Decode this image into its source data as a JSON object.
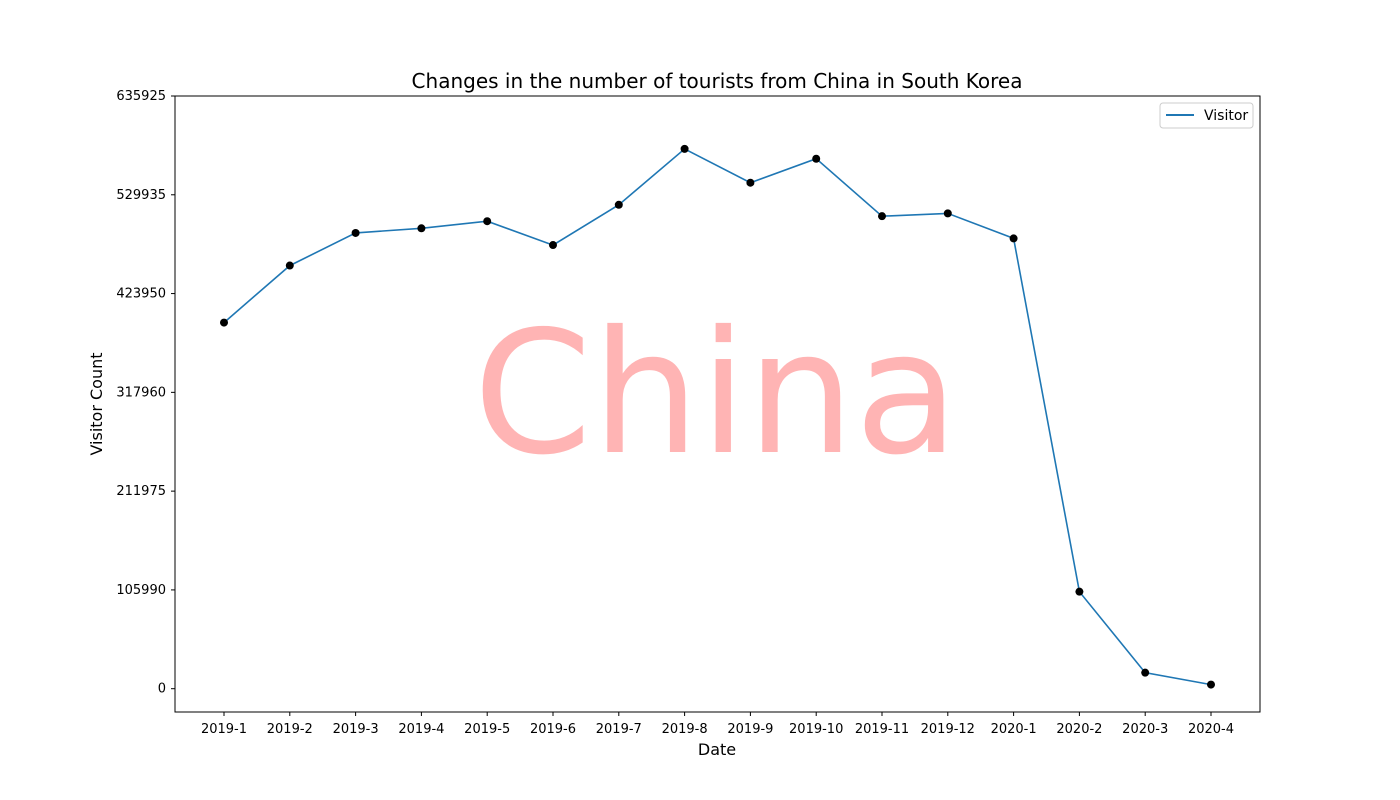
{
  "chart_data": {
    "type": "line",
    "title": "Changes in the number of tourists from China in South Korea",
    "xlabel": "Date",
    "ylabel": "Visitor Count",
    "watermark": "China",
    "categories": [
      "2019-1",
      "2019-2",
      "2019-3",
      "2019-4",
      "2019-5",
      "2019-6",
      "2019-7",
      "2019-8",
      "2019-9",
      "2019-10",
      "2019-11",
      "2019-12",
      "2020-1",
      "2020-2",
      "2020-3",
      "2020-4"
    ],
    "series": [
      {
        "name": "Visitor",
        "values": [
          392800,
          454000,
          489000,
          494000,
          501600,
          476000,
          519200,
          579200,
          542900,
          568600,
          507000,
          510000,
          483100,
          104100,
          17200,
          4400
        ]
      }
    ],
    "yticks": [
      "0",
      "105990",
      "211975",
      "317960",
      "423950",
      "529935",
      "635925"
    ],
    "ytick_values": [
      0,
      105990,
      211975,
      317960,
      423950,
      529935,
      635925
    ],
    "ylim": [
      -25000,
      635925
    ],
    "grid": false,
    "legend_position": "top-right",
    "colors": {
      "line": "#1f77b4",
      "marker": "#000000",
      "watermark": "#ff6b6b",
      "axes": "#000000"
    }
  }
}
